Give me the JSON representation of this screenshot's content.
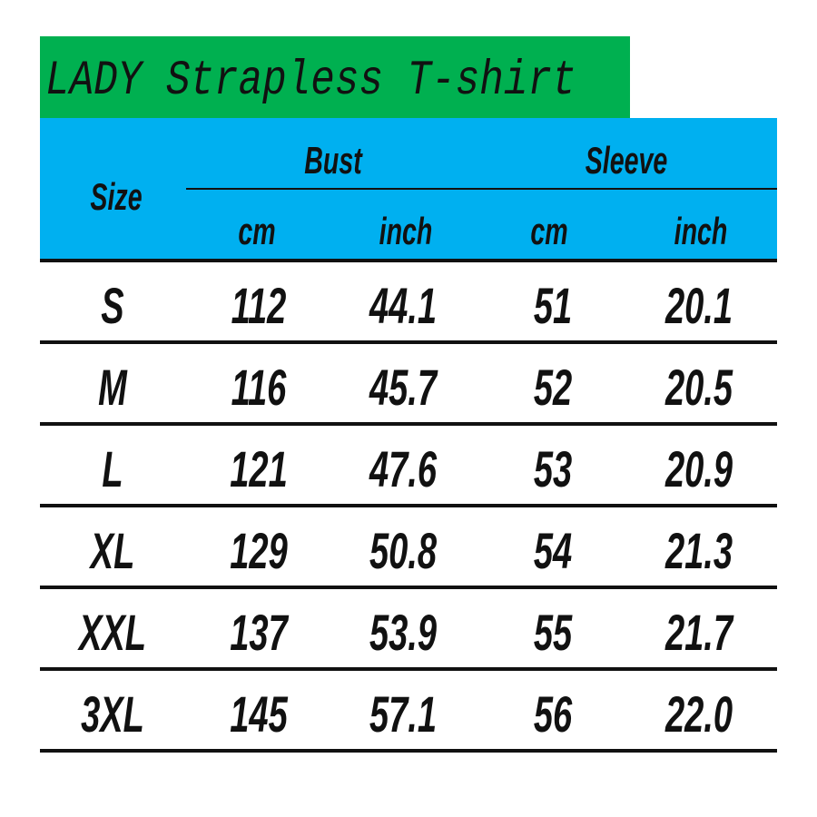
{
  "title": "LADY Strapless T-shirt",
  "colors": {
    "title_bg": "#00B050",
    "header_bg": "#00B0F0"
  },
  "header": {
    "size": "Size",
    "groups": [
      "Bust",
      "Sleeve"
    ],
    "units": [
      "cm",
      "inch",
      "cm",
      "inch"
    ]
  },
  "rows": [
    {
      "size": "S",
      "bust_cm": "112",
      "bust_inch": "44.1",
      "sleeve_cm": "51",
      "sleeve_inch": "20.1"
    },
    {
      "size": "M",
      "bust_cm": "116",
      "bust_inch": "45.7",
      "sleeve_cm": "52",
      "sleeve_inch": "20.5"
    },
    {
      "size": "L",
      "bust_cm": "121",
      "bust_inch": "47.6",
      "sleeve_cm": "53",
      "sleeve_inch": "20.9"
    },
    {
      "size": "XL",
      "bust_cm": "129",
      "bust_inch": "50.8",
      "sleeve_cm": "54",
      "sleeve_inch": "21.3"
    },
    {
      "size": "XXL",
      "bust_cm": "137",
      "bust_inch": "53.9",
      "sleeve_cm": "55",
      "sleeve_inch": "21.7"
    },
    {
      "size": "3XL",
      "bust_cm": "145",
      "bust_inch": "57.1",
      "sleeve_cm": "56",
      "sleeve_inch": "22.0"
    }
  ]
}
